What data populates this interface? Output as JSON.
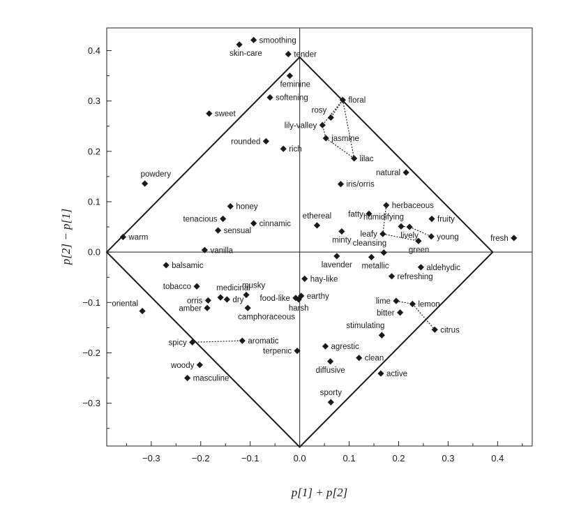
{
  "chart_data": {
    "type": "scatter",
    "title": "",
    "xlabel": "p[1] + p[2]",
    "ylabel": "p[2] − p[1]",
    "xlim": [
      -0.39,
      0.47
    ],
    "ylim": [
      -0.385,
      0.445
    ],
    "xticks": [
      -0.3,
      -0.2,
      -0.1,
      0.0,
      0.1,
      0.2,
      0.3,
      0.4
    ],
    "xtick_labels": [
      "−0.3",
      "−0.2",
      "−0.1",
      "0.0",
      "0.1",
      "0.2",
      "0.3",
      "0.4"
    ],
    "yticks": [
      -0.3,
      -0.2,
      -0.1,
      0.0,
      0.1,
      0.2,
      0.3,
      0.4
    ],
    "ytick_labels": [
      "−0.3",
      "−0.2",
      "−0.1",
      "0.0",
      "0.1",
      "0.2",
      "0.3",
      "0.4"
    ],
    "grid": false,
    "reference_lines": {
      "x": 0.0,
      "y": 0.0
    },
    "diamond": [
      [
        0.0,
        0.387
      ],
      [
        0.39,
        0.0
      ],
      [
        0.0,
        -0.387
      ],
      [
        -0.39,
        0.0
      ]
    ],
    "points": [
      {
        "label": "smoothing",
        "x": -0.093,
        "y": 0.421
      },
      {
        "label": "skin-care",
        "x": -0.122,
        "y": 0.412
      },
      {
        "label": "tender",
        "x": -0.023,
        "y": 0.393
      },
      {
        "label": "feminine",
        "x": -0.02,
        "y": 0.35
      },
      {
        "label": "softening",
        "x": -0.06,
        "y": 0.307
      },
      {
        "label": "floral",
        "x": 0.087,
        "y": 0.302
      },
      {
        "label": "sweet",
        "x": -0.183,
        "y": 0.275
      },
      {
        "label": "rosy",
        "x": 0.063,
        "y": 0.267
      },
      {
        "label": "lily-valley",
        "x": 0.046,
        "y": 0.252
      },
      {
        "label": "jasmine",
        "x": 0.053,
        "y": 0.226
      },
      {
        "label": "rounded",
        "x": -0.068,
        "y": 0.22
      },
      {
        "label": "rich",
        "x": -0.033,
        "y": 0.205
      },
      {
        "label": "lilac",
        "x": 0.11,
        "y": 0.186
      },
      {
        "label": "natural",
        "x": 0.215,
        "y": 0.158
      },
      {
        "label": "powdery",
        "x": -0.313,
        "y": 0.136
      },
      {
        "label": "iris/orris",
        "x": 0.083,
        "y": 0.135
      },
      {
        "label": "honey",
        "x": -0.14,
        "y": 0.091
      },
      {
        "label": "herbaceous",
        "x": 0.175,
        "y": 0.093
      },
      {
        "label": "fatty",
        "x": 0.14,
        "y": 0.076
      },
      {
        "label": "fruity",
        "x": 0.267,
        "y": 0.066
      },
      {
        "label": "tenacious",
        "x": -0.155,
        "y": 0.066
      },
      {
        "label": "cinnamic",
        "x": -0.093,
        "y": 0.057
      },
      {
        "label": "ethereal",
        "x": 0.035,
        "y": 0.053
      },
      {
        "label": "humidifying",
        "x": 0.205,
        "y": 0.051
      },
      {
        "label": "lively",
        "x": 0.222,
        "y": 0.05
      },
      {
        "label": "sensual",
        "x": -0.165,
        "y": 0.043
      },
      {
        "label": "minty",
        "x": 0.085,
        "y": 0.041
      },
      {
        "label": "leafy",
        "x": 0.168,
        "y": 0.036
      },
      {
        "label": "young",
        "x": 0.266,
        "y": 0.031
      },
      {
        "label": "warm",
        "x": -0.357,
        "y": 0.03
      },
      {
        "label": "fresh",
        "x": 0.433,
        "y": 0.028
      },
      {
        "label": "green",
        "x": 0.24,
        "y": 0.022
      },
      {
        "label": "vanilla",
        "x": -0.192,
        "y": 0.004
      },
      {
        "label": "cleansing",
        "x": 0.17,
        "y": -0.001
      },
      {
        "label": "lavender",
        "x": 0.075,
        "y": -0.008
      },
      {
        "label": "metallic",
        "x": 0.145,
        "y": -0.01
      },
      {
        "label": "balsamic",
        "x": -0.27,
        "y": -0.026
      },
      {
        "label": "aldehydic",
        "x": 0.245,
        "y": -0.03
      },
      {
        "label": "refreshing",
        "x": 0.186,
        "y": -0.048
      },
      {
        "label": "hay-like",
        "x": 0.01,
        "y": -0.053
      },
      {
        "label": "tobacco",
        "x": -0.208,
        "y": -0.068
      },
      {
        "label": "medicinal",
        "x": -0.16,
        "y": -0.09
      },
      {
        "label": "musky",
        "x": -0.108,
        "y": -0.085
      },
      {
        "label": "dry",
        "x": -0.147,
        "y": -0.094
      },
      {
        "label": "food-like",
        "x": -0.008,
        "y": -0.091
      },
      {
        "label": "earthy",
        "x": 0.003,
        "y": -0.087
      },
      {
        "label": "harsh",
        "x": -0.002,
        "y": -0.094
      },
      {
        "label": "orris",
        "x": -0.185,
        "y": -0.096
      },
      {
        "label": "lime",
        "x": 0.195,
        "y": -0.097
      },
      {
        "label": "lemon",
        "x": 0.228,
        "y": -0.103
      },
      {
        "label": "amber",
        "x": -0.187,
        "y": -0.111
      },
      {
        "label": "camphoraceous",
        "x": -0.105,
        "y": -0.111
      },
      {
        "label": "oriental",
        "x": -0.318,
        "y": -0.117
      },
      {
        "label": "bitter",
        "x": 0.203,
        "y": -0.12
      },
      {
        "label": "citrus",
        "x": 0.273,
        "y": -0.154
      },
      {
        "label": "stimulating",
        "x": 0.166,
        "y": -0.165
      },
      {
        "label": "aromatic",
        "x": -0.116,
        "y": -0.176
      },
      {
        "label": "spicy",
        "x": -0.217,
        "y": -0.179
      },
      {
        "label": "agrestic",
        "x": 0.052,
        "y": -0.187
      },
      {
        "label": "terpenic",
        "x": -0.005,
        "y": -0.196
      },
      {
        "label": "clean",
        "x": 0.12,
        "y": -0.21
      },
      {
        "label": "diffusive",
        "x": 0.062,
        "y": -0.217
      },
      {
        "label": "woody",
        "x": -0.202,
        "y": -0.224
      },
      {
        "label": "active",
        "x": 0.164,
        "y": -0.241
      },
      {
        "label": "masculine",
        "x": -0.227,
        "y": -0.25
      },
      {
        "label": "sporty",
        "x": 0.063,
        "y": -0.298
      }
    ],
    "dotted_links": [
      [
        "floral",
        "rosy"
      ],
      [
        "floral",
        "lily-valley"
      ],
      [
        "floral",
        "lilac"
      ],
      [
        "jasmine",
        "lily-valley"
      ],
      [
        "jasmine",
        "lilac"
      ],
      [
        "herbaceous",
        "leafy"
      ],
      [
        "leafy",
        "green"
      ],
      [
        "humidifying",
        "lively"
      ],
      [
        "lively",
        "young"
      ],
      [
        "lime",
        "lemon"
      ],
      [
        "lemon",
        "citrus"
      ],
      [
        "spicy",
        "aromatic"
      ]
    ],
    "label_anchors": {
      "smoothing": "right",
      "skin-care": "below-right",
      "tender": "right",
      "feminine": "below-right",
      "softening": "right",
      "floral": "right",
      "sweet": "right",
      "rosy": "left-up",
      "lily-valley": "left",
      "jasmine": "right",
      "rounded": "left",
      "rich": "right",
      "lilac": "right",
      "natural": "left",
      "powdery": "above-right",
      "iris/orris": "right",
      "honey": "right",
      "herbaceous": "right",
      "fatty": "left",
      "fruity": "right",
      "tenacious": "left",
      "cinnamic": "right",
      "ethereal": "above",
      "humidifying": "above-left",
      "lively": "below",
      "sensual": "right",
      "minty": "below",
      "leafy": "left",
      "young": "right",
      "warm": "right",
      "fresh": "left",
      "green": "below-right",
      "vanilla": "right",
      "cleansing": "above-left",
      "lavender": "below",
      "metallic": "below-right",
      "balsamic": "right",
      "aldehydic": "right",
      "refreshing": "right",
      "hay-like": "right",
      "tobacco": "left",
      "medicinal": "above-right",
      "musky": "above-right",
      "dry": "right",
      "food-like": "left",
      "earthy": "right",
      "harsh": "below",
      "orris": "left",
      "lime": "left",
      "lemon": "right",
      "amber": "left",
      "camphoraceous": "below-right",
      "oriental": "left-up",
      "bitter": "left",
      "citrus": "right",
      "stimulating": "above-left",
      "aromatic": "right",
      "spicy": "left",
      "agrestic": "right",
      "terpenic": "left",
      "clean": "right",
      "diffusive": "below",
      "woody": "left",
      "active": "right",
      "masculine": "right",
      "sporty": "above"
    }
  }
}
